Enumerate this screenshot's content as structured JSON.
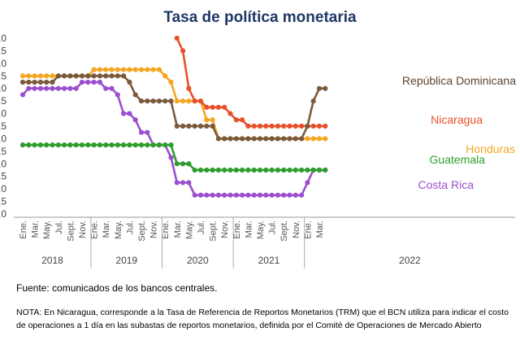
{
  "source_text": "Fuente: comunicados de los bancos centrales.",
  "note_text": "NOTA: En Nicaragua, corresponde a la Tasa de Referencia de Reportos Monetarios (TRM) que el BCN utiliza para indicar el costo de operaciones a 1 día en las subastas de reportos monetarios, definida por el Comité de Operaciones de Mercado Abierto",
  "chart_data": {
    "type": "line",
    "title": "Tasa de política monetaria",
    "xlabel": "",
    "ylabel": "",
    "ylim": [
      0,
      7.0
    ],
    "y_ticks": [
      ",0",
      ",5",
      ",0",
      ",5",
      ",0",
      ",5",
      ",0",
      ",5",
      ",0",
      ",5",
      ",0",
      ",5",
      ",0",
      ",5",
      ",0"
    ],
    "x_tick_labels": [
      "Ene.",
      "Mar.",
      "May.",
      "Jul.",
      "Sept.",
      "Nov.",
      "Ene.",
      "Mar.",
      "May.",
      "Jul.",
      "Sept.",
      "Nov.",
      "Ene.",
      "Mar.",
      "May.",
      "Jul.",
      "Sept.",
      "Nov.",
      "Ene.",
      "Mar.",
      "May.",
      "Jul.",
      "Sept.",
      "Nov.",
      "Ene.",
      "Mar."
    ],
    "x_tick_months": [
      0,
      2,
      4,
      6,
      8,
      10,
      12,
      14,
      16,
      18,
      20,
      22,
      24,
      26,
      28,
      30,
      32,
      34,
      36,
      38,
      40,
      42,
      44,
      46,
      48,
      50
    ],
    "years": [
      {
        "label": "2018",
        "start": 0,
        "end": 11
      },
      {
        "label": "2019",
        "start": 12,
        "end": 23
      },
      {
        "label": "2020",
        "start": 24,
        "end": 35
      },
      {
        "label": "2021",
        "start": 36,
        "end": 47
      },
      {
        "label": "2022",
        "start": 48,
        "end": 50
      }
    ],
    "grid": false,
    "legend": "inline labels",
    "series": [
      {
        "name": "República Dominicana",
        "color": "#7b5a3c",
        "label_color": "#5d4330",
        "start_month": 0,
        "values": [
          5.25,
          5.25,
          5.25,
          5.25,
          5.25,
          5.25,
          5.5,
          5.5,
          5.5,
          5.5,
          5.5,
          5.5,
          5.5,
          5.5,
          5.5,
          5.5,
          5.5,
          5.5,
          5.25,
          4.75,
          4.5,
          4.5,
          4.5,
          4.5,
          4.5,
          4.5,
          3.5,
          3.5,
          3.5,
          3.5,
          3.5,
          3.5,
          3.5,
          3.0,
          3.0,
          3.0,
          3.0,
          3.0,
          3.0,
          3.0,
          3.0,
          3.0,
          3.0,
          3.0,
          3.0,
          3.0,
          3.0,
          3.0,
          3.5,
          4.5,
          5.0,
          5.0
        ]
      },
      {
        "name": "Honduras",
        "color": "#f5a623",
        "label_color": "#f5a623",
        "start_month": 0,
        "values": [
          5.5,
          5.5,
          5.5,
          5.5,
          5.5,
          5.5,
          5.5,
          5.5,
          5.5,
          5.5,
          5.5,
          5.5,
          5.75,
          5.75,
          5.75,
          5.75,
          5.75,
          5.75,
          5.75,
          5.75,
          5.75,
          5.75,
          5.75,
          5.75,
          5.5,
          5.25,
          4.5,
          4.5,
          4.5,
          4.5,
          4.5,
          3.75,
          3.75,
          3.0,
          3.0,
          3.0,
          3.0,
          3.0,
          3.0,
          3.0,
          3.0,
          3.0,
          3.0,
          3.0,
          3.0,
          3.0,
          3.0,
          3.0,
          3.0,
          3.0,
          3.0,
          3.0
        ]
      },
      {
        "name": "Nicaragua",
        "color": "#e8502a",
        "label_color": "#e8502a",
        "start_month": 26,
        "values": [
          7.0,
          6.5,
          5.0,
          4.5,
          4.5,
          4.25,
          4.25,
          4.25,
          4.25,
          4.0,
          3.75,
          3.75,
          3.5,
          3.5,
          3.5,
          3.5,
          3.5,
          3.5,
          3.5,
          3.5,
          3.5,
          3.5,
          3.5,
          3.5,
          3.5,
          3.5
        ]
      },
      {
        "name": "Guatemala",
        "color": "#2e9d2e",
        "label_color": "#2e9d2e",
        "start_month": 0,
        "values": [
          2.75,
          2.75,
          2.75,
          2.75,
          2.75,
          2.75,
          2.75,
          2.75,
          2.75,
          2.75,
          2.75,
          2.75,
          2.75,
          2.75,
          2.75,
          2.75,
          2.75,
          2.75,
          2.75,
          2.75,
          2.75,
          2.75,
          2.75,
          2.75,
          2.75,
          2.75,
          2.0,
          2.0,
          2.0,
          1.75,
          1.75,
          1.75,
          1.75,
          1.75,
          1.75,
          1.75,
          1.75,
          1.75,
          1.75,
          1.75,
          1.75,
          1.75,
          1.75,
          1.75,
          1.75,
          1.75,
          1.75,
          1.75,
          1.75,
          1.75,
          1.75,
          1.75
        ]
      },
      {
        "name": "Costa Rica",
        "color": "#9b4fcf",
        "label_color": "#9b4fcf",
        "start_month": 0,
        "values": [
          4.75,
          5.0,
          5.0,
          5.0,
          5.0,
          5.0,
          5.0,
          5.0,
          5.0,
          5.0,
          5.25,
          5.25,
          5.25,
          5.25,
          5.0,
          5.0,
          4.75,
          4.0,
          4.0,
          3.75,
          3.25,
          3.25,
          2.75,
          2.75,
          2.75,
          2.25,
          1.25,
          1.25,
          1.25,
          0.75,
          0.75,
          0.75,
          0.75,
          0.75,
          0.75,
          0.75,
          0.75,
          0.75,
          0.75,
          0.75,
          0.75,
          0.75,
          0.75,
          0.75,
          0.75,
          0.75,
          0.75,
          0.75,
          1.25,
          1.75,
          1.75,
          1.75
        ]
      }
    ]
  }
}
